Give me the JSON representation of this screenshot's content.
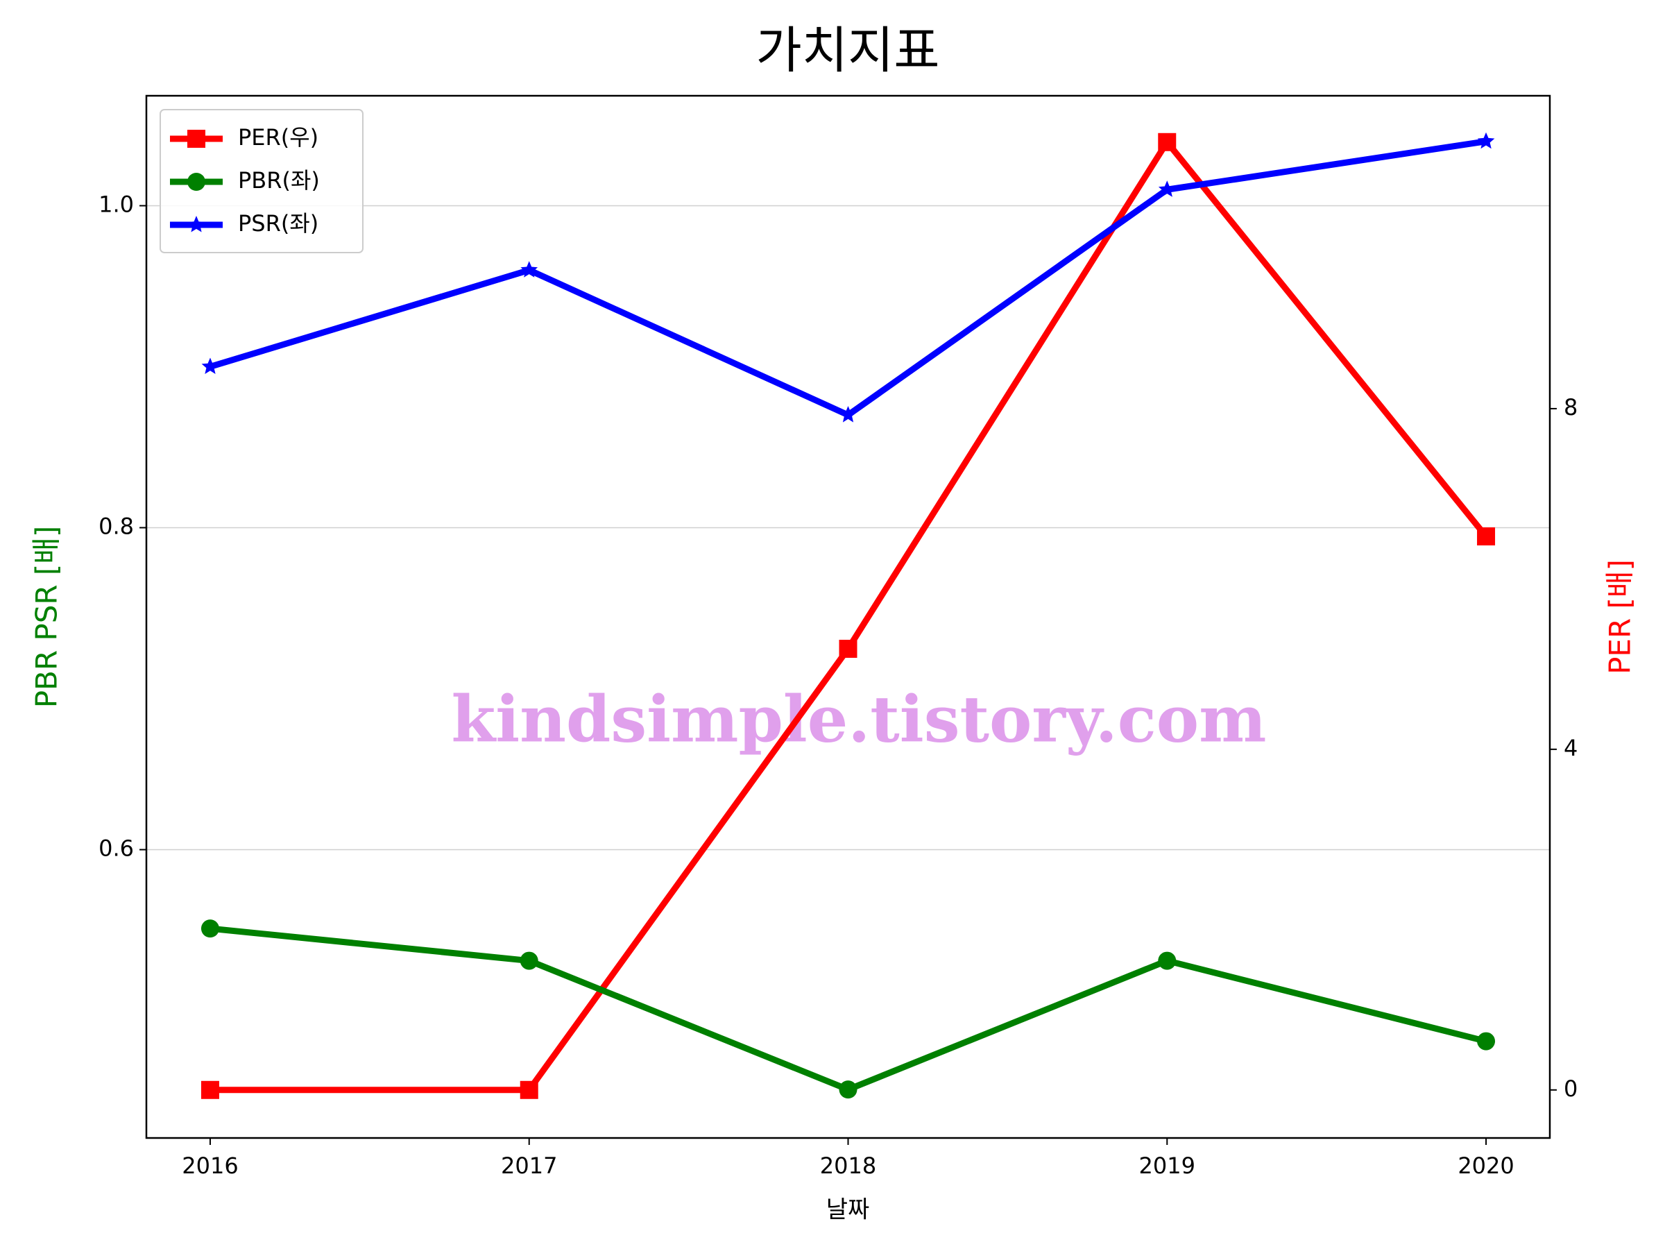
{
  "chart_data": {
    "type": "line",
    "title": "가치지표",
    "x_label": "날짜",
    "y_label": "PBR PSR [배]",
    "y2_label": "PER [배]",
    "x": [
      2016,
      2017,
      2018,
      2019,
      2020
    ],
    "xlim": [
      2015.8,
      2020.2
    ],
    "xticks": [
      2016,
      2017,
      2018,
      2019,
      2020
    ],
    "ylim": [
      0.4209,
      1.0683
    ],
    "yticks": [
      0.6,
      0.8,
      {
        "value": 1,
        "label": "1.0"
      }
    ],
    "y2lim": [
      -0.564,
      11.674
    ],
    "y2ticks": [
      0,
      4,
      8
    ],
    "grid": true,
    "legend": "upper left",
    "watermark": "kindsimple.tistory.com",
    "series": [
      {
        "name": "PER(우)",
        "color": "#ff0000",
        "marker": "square",
        "axis": "y2",
        "values": [
          0,
          0,
          5.18,
          11.13,
          6.5
        ]
      },
      {
        "name": "PBR(좌)",
        "color": "#008000",
        "marker": "circle",
        "values": [
          0.551,
          0.531,
          0.451,
          0.531,
          0.481
        ]
      },
      {
        "name": "PSR(좌)",
        "color": "#0000ff",
        "marker": "star",
        "values": [
          0.9,
          0.96,
          0.87,
          1.01,
          1.04
        ]
      }
    ]
  }
}
